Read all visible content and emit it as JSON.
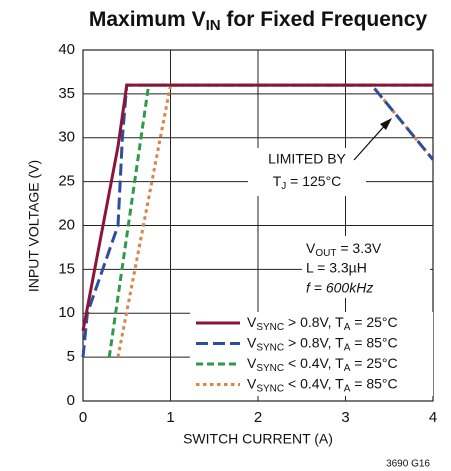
{
  "chart_data": {
    "type": "line",
    "title": [
      "Maximum V",
      "IN",
      " for Fixed Frequency"
    ],
    "xlabel": "SWITCH CURRENT (A)",
    "ylabel": "INPUT VOLTAGE (V)",
    "xlim": [
      0,
      4
    ],
    "xticks": [
      0,
      1,
      2,
      3,
      4
    ],
    "ylim": [
      0,
      40
    ],
    "yticks": [
      0,
      5,
      10,
      15,
      20,
      25,
      30,
      35,
      40
    ],
    "grid": true,
    "legend": "lower right",
    "series": [
      {
        "name": [
          "V",
          "SYNC",
          " > 0.8V, T",
          "A",
          " = 25°C"
        ],
        "color": "#8b1538",
        "dash": "solid",
        "x": [
          0,
          0.4,
          0.5,
          4
        ],
        "values": [
          8,
          29,
          36,
          36
        ]
      },
      {
        "name": [
          "V",
          "SYNC",
          " > 0.8V, T",
          "A",
          " = 85°C"
        ],
        "color": "#2e4d9e",
        "dash": "dashed",
        "x": [
          0,
          0.05,
          0.4,
          0.45,
          0.5,
          3.3,
          4
        ],
        "values": [
          5,
          10,
          20,
          30,
          36,
          36,
          27.5
        ]
      },
      {
        "name": [
          "V",
          "SYNC",
          " < 0.4V, T",
          "A",
          " = 25°C"
        ],
        "color": "#2e9a4a",
        "dash": "dashed",
        "x": [
          0.3,
          0.75,
          4
        ],
        "values": [
          5,
          36,
          36
        ]
      },
      {
        "name": [
          "V",
          "SYNC",
          " < 0.4V, T",
          "A",
          " = 85°C"
        ],
        "color": "#d9844a",
        "dash": "dotted",
        "x": [
          0.4,
          1.0,
          3.3,
          4
        ],
        "values": [
          5,
          36,
          36,
          27.5
        ]
      }
    ],
    "annotations": {
      "limit": [
        "LIMITED BY",
        [
          "T",
          "J",
          " = 125°C"
        ]
      ],
      "conditions": [
        [
          "V",
          "OUT",
          " = 3.3V"
        ],
        "L = 3.3µH",
        "f = 600kHz"
      ],
      "code": "3690 G16"
    }
  }
}
